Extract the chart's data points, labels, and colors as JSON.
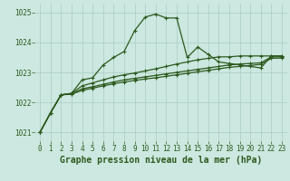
{
  "xlabel": "Graphe pression niveau de la mer (hPa)",
  "ylim": [
    1020.7,
    1025.3
  ],
  "xlim": [
    -0.5,
    23.5
  ],
  "yticks": [
    1021,
    1022,
    1023,
    1024,
    1025
  ],
  "xticks": [
    0,
    1,
    2,
    3,
    4,
    5,
    6,
    7,
    8,
    9,
    10,
    11,
    12,
    13,
    14,
    15,
    16,
    17,
    18,
    19,
    20,
    21,
    22,
    23
  ],
  "bg_color": "#cce8e0",
  "grid_color": "#aaccc4",
  "line_color": "#2d5a1e",
  "line1_x": [
    0,
    1,
    2,
    3,
    4,
    5,
    6,
    7,
    8,
    9,
    10,
    11,
    12,
    13,
    14,
    15,
    16,
    17,
    18,
    19,
    20,
    21,
    22,
    23
  ],
  "line1_y": [
    1021.0,
    1021.65,
    1022.25,
    1022.3,
    1022.75,
    1022.82,
    1023.25,
    1023.5,
    1023.7,
    1024.4,
    1024.85,
    1024.95,
    1024.82,
    1024.82,
    1023.5,
    1023.85,
    1023.6,
    1023.35,
    1023.3,
    1023.25,
    1023.2,
    1023.15,
    1023.55,
    1023.55
  ],
  "line2_x": [
    0,
    1,
    2,
    3,
    4,
    5,
    6,
    7,
    8,
    9,
    10,
    11,
    12,
    13,
    14,
    15,
    16,
    17,
    18,
    19,
    20,
    21,
    22,
    23
  ],
  "line2_y": [
    1021.0,
    1021.65,
    1022.25,
    1022.3,
    1022.55,
    1022.65,
    1022.75,
    1022.85,
    1022.92,
    1022.98,
    1023.05,
    1023.12,
    1023.2,
    1023.28,
    1023.35,
    1023.42,
    1023.47,
    1023.52,
    1023.52,
    1023.55,
    1023.55,
    1023.55,
    1023.55,
    1023.55
  ],
  "line3_x": [
    0,
    1,
    2,
    3,
    4,
    5,
    6,
    7,
    8,
    9,
    10,
    11,
    12,
    13,
    14,
    15,
    16,
    17,
    18,
    19,
    20,
    21,
    22,
    23
  ],
  "line3_y": [
    1021.0,
    1021.65,
    1022.25,
    1022.28,
    1022.45,
    1022.52,
    1022.6,
    1022.68,
    1022.75,
    1022.8,
    1022.85,
    1022.9,
    1022.95,
    1023.0,
    1023.05,
    1023.1,
    1023.15,
    1023.2,
    1023.25,
    1023.28,
    1023.3,
    1023.32,
    1023.52,
    1023.52
  ],
  "line4_x": [
    0,
    1,
    2,
    3,
    4,
    5,
    6,
    7,
    8,
    9,
    10,
    11,
    12,
    13,
    14,
    15,
    16,
    17,
    18,
    19,
    20,
    21,
    22,
    23
  ],
  "line4_y": [
    1021.0,
    1021.65,
    1022.25,
    1022.27,
    1022.4,
    1022.47,
    1022.55,
    1022.62,
    1022.68,
    1022.73,
    1022.78,
    1022.82,
    1022.87,
    1022.92,
    1022.97,
    1023.02,
    1023.07,
    1023.12,
    1023.17,
    1023.2,
    1023.23,
    1023.27,
    1023.47,
    1023.48
  ],
  "marker": "+",
  "markersize": 3,
  "linewidth": 0.9,
  "xlabel_fontsize": 7,
  "tick_fontsize": 5.5
}
